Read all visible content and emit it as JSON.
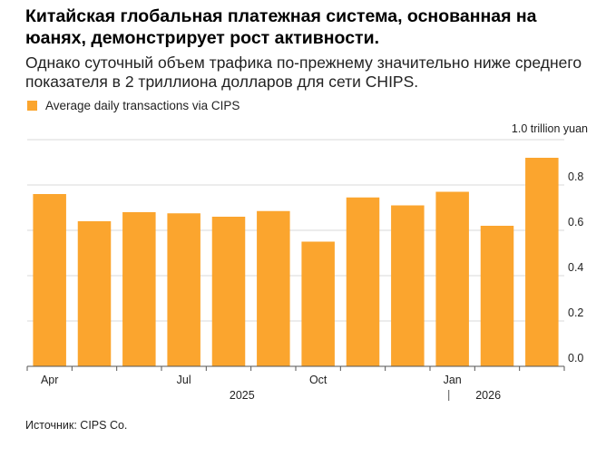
{
  "header": {
    "title": "Китайская глобальная платежная система, основанная на юанях, демонстрирует рост активности.",
    "subtitle": "Однако суточный объем трафика по-прежнему значительно ниже среднего показателя в 2 триллиона долларов для сети CHIPS."
  },
  "footer": {
    "source": "Источник: CIPS Co."
  },
  "colors": {
    "bar": "#FBA52E",
    "grid": "#D9D9D9",
    "axis": "#555555",
    "text": "#222222"
  },
  "chart_data": {
    "type": "bar",
    "categories": [
      "2025-04",
      "2025-05",
      "2025-06",
      "2025-07",
      "2025-08",
      "2025-09",
      "2025-10",
      "2025-11",
      "2025-12",
      "2026-01",
      "2026-02",
      "2026-03"
    ],
    "series": [
      {
        "name": "Average daily transactions via CIPS",
        "values": [
          0.76,
          0.64,
          0.68,
          0.675,
          0.66,
          0.685,
          0.55,
          0.745,
          0.71,
          0.77,
          0.62,
          0.92
        ]
      }
    ],
    "x_tick_labels": [
      {
        "index": 0,
        "label": "Apr"
      },
      {
        "index": 3,
        "label": "Jul"
      },
      {
        "index": 6,
        "label": "Oct"
      },
      {
        "index": 9,
        "label": "Jan"
      }
    ],
    "x_group_labels": [
      {
        "label": "2025",
        "from": 0,
        "to": 8
      },
      {
        "label": "2026",
        "from": 9,
        "to": 11
      }
    ],
    "y_ticks": [
      1.0,
      0.8,
      0.6,
      0.4,
      0.2,
      0.0
    ],
    "y_tick_labels": [
      "1.0 trillion yuan",
      "0.8",
      "0.6",
      "0.4",
      "0.2",
      "0.0"
    ],
    "ylim": [
      0,
      1.0
    ],
    "ylabel": "",
    "xlabel": "",
    "legend_position": "top-left",
    "grid": true
  }
}
